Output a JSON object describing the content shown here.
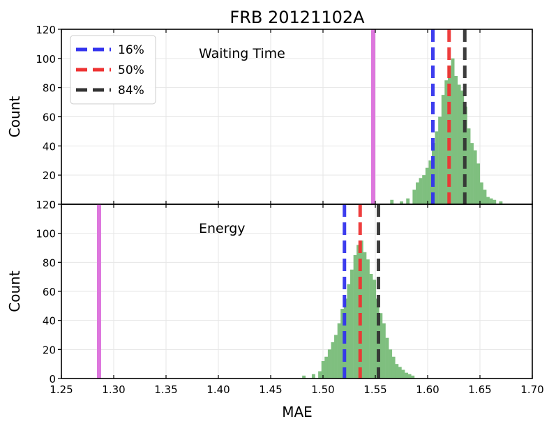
{
  "chart_data": {
    "type": "bar",
    "title": "FRB 20121102A",
    "xlabel": "MAE",
    "xlim": [
      1.25,
      1.7
    ],
    "xticks": [
      "1.25",
      "1.30",
      "1.35",
      "1.40",
      "1.45",
      "1.50",
      "1.55",
      "1.60",
      "1.65",
      "1.70"
    ],
    "xtick_values": [
      1.25,
      1.3,
      1.35,
      1.4,
      1.45,
      1.5,
      1.55,
      1.6,
      1.65,
      1.7
    ],
    "grid": true,
    "legend": {
      "placement": "top-left",
      "entries": [
        {
          "label": "16%",
          "color": "#3333ee"
        },
        {
          "label": "50%",
          "color": "#ee3333"
        },
        {
          "label": "84%",
          "color": "#333333"
        }
      ]
    },
    "panels": [
      {
        "annotation": "Waiting Time",
        "ylabel": "Count",
        "ylim": [
          0,
          120
        ],
        "yticks": [
          "0",
          "20",
          "40",
          "60",
          "80",
          "100",
          "120"
        ],
        "ytick_values": [
          0,
          20,
          40,
          60,
          80,
          100,
          120
        ],
        "hist_color": "#7fbf7f",
        "bin_width": 0.00306,
        "bins": [
          [
            1.5642,
            3
          ],
          [
            1.5734,
            2
          ],
          [
            1.5795,
            4
          ],
          [
            1.5856,
            10
          ],
          [
            1.5887,
            15
          ],
          [
            1.5917,
            18
          ],
          [
            1.5948,
            20
          ],
          [
            1.5979,
            25
          ],
          [
            1.6009,
            30
          ],
          [
            1.604,
            42
          ],
          [
            1.607,
            50
          ],
          [
            1.6101,
            60
          ],
          [
            1.6132,
            75
          ],
          [
            1.6162,
            85
          ],
          [
            1.6193,
            95
          ],
          [
            1.6224,
            100
          ],
          [
            1.6254,
            88
          ],
          [
            1.6285,
            82
          ],
          [
            1.6315,
            78
          ],
          [
            1.6346,
            67
          ],
          [
            1.6377,
            52
          ],
          [
            1.6407,
            42
          ],
          [
            1.6438,
            37
          ],
          [
            1.6468,
            28
          ],
          [
            1.6499,
            15
          ],
          [
            1.653,
            10
          ],
          [
            1.656,
            5
          ],
          [
            1.6591,
            4
          ],
          [
            1.6622,
            3
          ],
          [
            1.6683,
            2
          ]
        ],
        "markers": {
          "percentile_16": 1.605,
          "percentile_50": 1.6205,
          "percentile_84": 1.6355,
          "reference": 1.548
        },
        "reference_color": "#dd77dd"
      },
      {
        "annotation": "Energy",
        "ylabel": "Count",
        "ylim": [
          0,
          120
        ],
        "yticks": [
          "0",
          "20",
          "40",
          "60",
          "80",
          "100",
          "120"
        ],
        "ytick_values": [
          0,
          20,
          40,
          60,
          80,
          100,
          120
        ],
        "hist_color": "#7fbf7f",
        "bin_width": 0.00306,
        "bins": [
          [
            1.4801,
            2
          ],
          [
            1.4893,
            3
          ],
          [
            1.4954,
            5
          ],
          [
            1.4985,
            12
          ],
          [
            1.5015,
            15
          ],
          [
            1.5046,
            20
          ],
          [
            1.5077,
            25
          ],
          [
            1.5107,
            30
          ],
          [
            1.5138,
            38
          ],
          [
            1.5168,
            48
          ],
          [
            1.5199,
            55
          ],
          [
            1.523,
            65
          ],
          [
            1.526,
            75
          ],
          [
            1.5291,
            85
          ],
          [
            1.5321,
            92
          ],
          [
            1.5352,
            95
          ],
          [
            1.5383,
            87
          ],
          [
            1.5413,
            82
          ],
          [
            1.5444,
            72
          ],
          [
            1.5475,
            68
          ],
          [
            1.5505,
            55
          ],
          [
            1.5536,
            45
          ],
          [
            1.5566,
            38
          ],
          [
            1.5597,
            28
          ],
          [
            1.5628,
            20
          ],
          [
            1.5658,
            15
          ],
          [
            1.5689,
            10
          ],
          [
            1.5719,
            8
          ],
          [
            1.575,
            6
          ],
          [
            1.5781,
            4
          ],
          [
            1.5811,
            3
          ],
          [
            1.5842,
            2
          ]
        ],
        "markers": {
          "percentile_16": 1.5205,
          "percentile_50": 1.5355,
          "percentile_84": 1.553,
          "reference": 1.286
        },
        "reference_color": "#dd77dd"
      }
    ]
  }
}
